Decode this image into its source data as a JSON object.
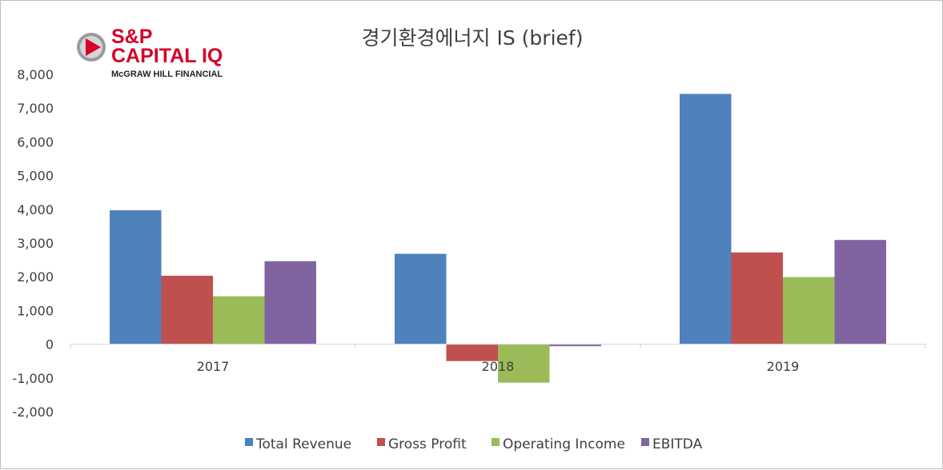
{
  "logo": {
    "line1": "S&P",
    "line2": "CAPITAL IQ",
    "line3": "McGRAW HILL FINANCIAL",
    "icon": "play-circle-logo-icon",
    "brand_color": "#d6002a"
  },
  "chart_data": {
    "type": "bar",
    "title": "경기환경에너지 IS (brief)",
    "categories": [
      "2017",
      "2018",
      "2019"
    ],
    "series": [
      {
        "name": "Total Revenue",
        "color": "#4f81bd",
        "values": [
          3970,
          2680,
          7420
        ]
      },
      {
        "name": "Gross Profit",
        "color": "#c0504d",
        "values": [
          2030,
          -500,
          2720
        ]
      },
      {
        "name": "Operating Income",
        "color": "#9bbb59",
        "values": [
          1420,
          -1140,
          1990
        ]
      },
      {
        "name": "EBITDA",
        "color": "#8064a2",
        "values": [
          2460,
          -60,
          3090
        ]
      }
    ],
    "ylim": [
      -2000,
      8000
    ],
    "yticks": [
      8000,
      7000,
      6000,
      5000,
      4000,
      3000,
      2000,
      1000,
      0,
      -1000,
      -2000
    ],
    "ytick_labels": [
      "8,000",
      "7,000",
      "6,000",
      "5,000",
      "4,000",
      "3,000",
      "2,000",
      "1,000",
      "0",
      "-1,000",
      "-2,000"
    ],
    "grid": false,
    "legend_position": "bottom",
    "xlabel": "",
    "ylabel": ""
  }
}
